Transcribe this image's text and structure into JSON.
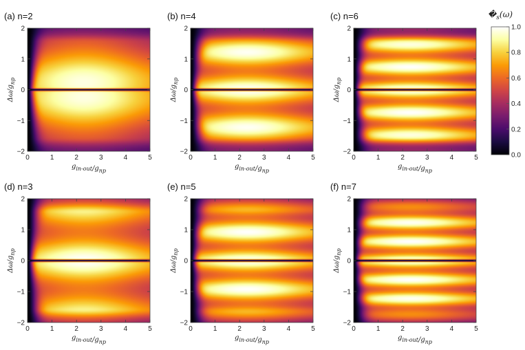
{
  "figure": {
    "colorbar": {
      "title": "𝒯s(ω)",
      "ticks": [
        "0.0",
        "0.2",
        "0.4",
        "0.6",
        "0.8",
        "1.0"
      ],
      "tick_values": [
        0.0,
        0.2,
        0.4,
        0.6,
        0.8,
        1.0
      ],
      "range": [
        0,
        1
      ],
      "colormap": [
        "#000004",
        "#1b0c41",
        "#4a0c6b",
        "#781c6d",
        "#a52c60",
        "#cf4446",
        "#ed6925",
        "#fb9b06",
        "#f7d13d",
        "#fcffa4",
        "#ffffff"
      ]
    }
  },
  "chart_data": [
    {
      "type": "heatmap",
      "title": "(a) n=2",
      "n": 2,
      "xlabel": "gin-out/gnp",
      "ylabel": "Δω/gnp",
      "xlim": [
        0,
        5
      ],
      "ylim": [
        -2,
        2
      ],
      "xticks": [
        "0",
        "1",
        "2",
        "3",
        "4",
        "5"
      ],
      "yticks": [
        "-2",
        "-1",
        "0",
        "1",
        "2"
      ]
    },
    {
      "type": "heatmap",
      "title": "(b) n=4",
      "n": 4,
      "xlabel": "gin-out/gnp",
      "ylabel": "Δω/gnp",
      "xlim": [
        0,
        5
      ],
      "ylim": [
        -2,
        2
      ],
      "xticks": [
        "0",
        "1",
        "2",
        "3",
        "4",
        "5"
      ],
      "yticks": [
        "-2",
        "-1",
        "0",
        "1",
        "2"
      ]
    },
    {
      "type": "heatmap",
      "title": "(c) n=6",
      "n": 6,
      "xlabel": "gin-out/gnp",
      "ylabel": "Δω/gnp",
      "xlim": [
        0,
        5
      ],
      "ylim": [
        -2,
        2
      ],
      "xticks": [
        "0",
        "1",
        "2",
        "3",
        "4",
        "5"
      ],
      "yticks": [
        "-2",
        "-1",
        "0",
        "1",
        "2"
      ]
    },
    {
      "type": "heatmap",
      "title": "(d) n=3",
      "n": 3,
      "xlabel": "gin-out/gnp",
      "ylabel": "Δω/gnp",
      "xlim": [
        0,
        5
      ],
      "ylim": [
        -2,
        2
      ],
      "xticks": [
        "0",
        "1",
        "2",
        "3",
        "4",
        "5"
      ],
      "yticks": [
        "-2",
        "-1",
        "0",
        "1",
        "2"
      ]
    },
    {
      "type": "heatmap",
      "title": "(e) n=5",
      "n": 5,
      "xlabel": "gin-out/gnp",
      "ylabel": "Δω/gnp",
      "xlim": [
        0,
        5
      ],
      "ylim": [
        -2,
        2
      ],
      "xticks": [
        "0",
        "1",
        "2",
        "3",
        "4",
        "5"
      ],
      "yticks": [
        "-2",
        "-1",
        "0",
        "1",
        "2"
      ]
    },
    {
      "type": "heatmap",
      "title": "(f) n=7",
      "n": 7,
      "xlabel": "gin-out/gnp",
      "ylabel": "Δω/gnp",
      "xlim": [
        0,
        5
      ],
      "ylim": [
        -2,
        2
      ],
      "xticks": [
        "0",
        "1",
        "2",
        "3",
        "4",
        "5"
      ],
      "yticks": [
        "-2",
        "-1",
        "0",
        "1",
        "2"
      ]
    }
  ]
}
